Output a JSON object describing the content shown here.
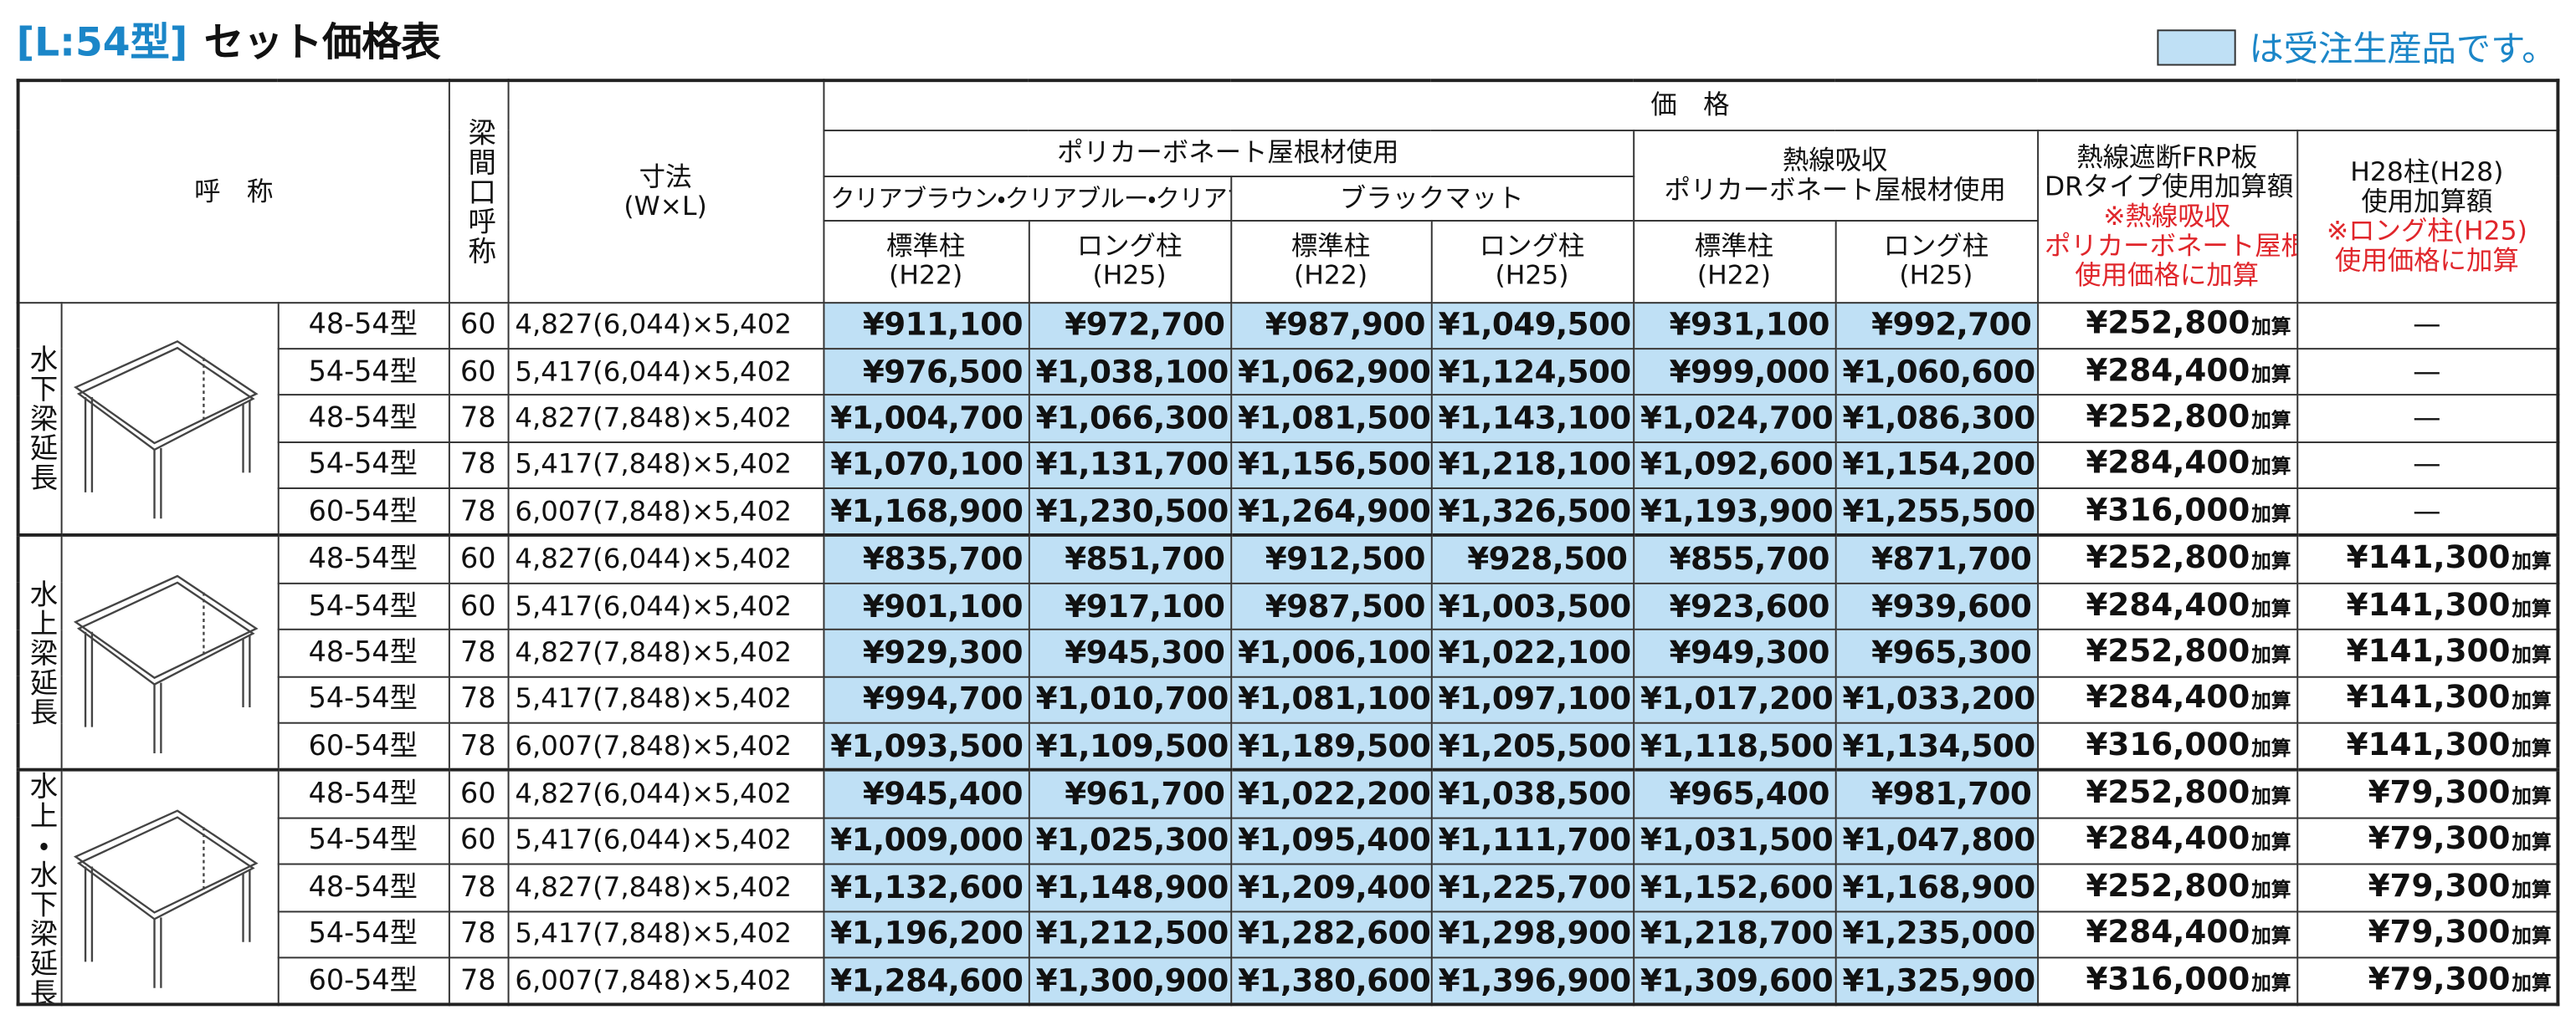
{
  "header": {
    "code": "[L:54型]",
    "title": "セット価格表",
    "legend": "は受注生産品です。",
    "name": "呼　称",
    "span": "梁間口呼称",
    "size": "寸法",
    "size_unit": "(W×L)",
    "price": "価　格",
    "poly": "ポリカーボネート屋根材使用",
    "clear": "クリアブラウン・クリアブルー・クリアマット",
    "black": "ブラックマット",
    "heat_absorb": [
      "熱線吸収",
      "ポリカーボネート屋根材使用"
    ],
    "dr": [
      "熱線遮断FRP板",
      "DRタイプ使用加算額"
    ],
    "dr_note": [
      "※熱線吸収",
      "ポリカーボネート屋根材",
      "使用価格に加算"
    ],
    "h28": [
      "H28柱(H28)",
      "使用加算額"
    ],
    "h28_note": [
      "※ロング柱(H25)",
      "使用価格に加算"
    ],
    "post_std": [
      "標準柱",
      "(H22)"
    ],
    "post_long": [
      "ロング柱",
      "(H25)"
    ],
    "add_suffix": "加算"
  },
  "groups": [
    {
      "label": "水下梁延長",
      "rows": [
        {
          "name": "48-54型",
          "span": "60",
          "size": "4,827(6,044)×5,402",
          "prices": [
            "¥911,100",
            "¥972,700",
            "¥987,900",
            "¥1,049,500",
            "¥931,100",
            "¥992,700"
          ],
          "dr": "¥252,800",
          "h28": "—"
        },
        {
          "name": "54-54型",
          "span": "60",
          "size": "5,417(6,044)×5,402",
          "prices": [
            "¥976,500",
            "¥1,038,100",
            "¥1,062,900",
            "¥1,124,500",
            "¥999,000",
            "¥1,060,600"
          ],
          "dr": "¥284,400",
          "h28": "—"
        },
        {
          "name": "48-54型",
          "span": "78",
          "size": "4,827(7,848)×5,402",
          "prices": [
            "¥1,004,700",
            "¥1,066,300",
            "¥1,081,500",
            "¥1,143,100",
            "¥1,024,700",
            "¥1,086,300"
          ],
          "dr": "¥252,800",
          "h28": "—"
        },
        {
          "name": "54-54型",
          "span": "78",
          "size": "5,417(7,848)×5,402",
          "prices": [
            "¥1,070,100",
            "¥1,131,700",
            "¥1,156,500",
            "¥1,218,100",
            "¥1,092,600",
            "¥1,154,200"
          ],
          "dr": "¥284,400",
          "h28": "—"
        },
        {
          "name": "60-54型",
          "span": "78",
          "size": "6,007(7,848)×5,402",
          "prices": [
            "¥1,168,900",
            "¥1,230,500",
            "¥1,264,900",
            "¥1,326,500",
            "¥1,193,900",
            "¥1,255,500"
          ],
          "dr": "¥316,000",
          "h28": "—"
        }
      ]
    },
    {
      "label": "水上梁延長",
      "rows": [
        {
          "name": "48-54型",
          "span": "60",
          "size": "4,827(6,044)×5,402",
          "prices": [
            "¥835,700",
            "¥851,700",
            "¥912,500",
            "¥928,500",
            "¥855,700",
            "¥871,700"
          ],
          "dr": "¥252,800",
          "h28": "¥141,300"
        },
        {
          "name": "54-54型",
          "span": "60",
          "size": "5,417(6,044)×5,402",
          "prices": [
            "¥901,100",
            "¥917,100",
            "¥987,500",
            "¥1,003,500",
            "¥923,600",
            "¥939,600"
          ],
          "dr": "¥284,400",
          "h28": "¥141,300"
        },
        {
          "name": "48-54型",
          "span": "78",
          "size": "4,827(7,848)×5,402",
          "prices": [
            "¥929,300",
            "¥945,300",
            "¥1,006,100",
            "¥1,022,100",
            "¥949,300",
            "¥965,300"
          ],
          "dr": "¥252,800",
          "h28": "¥141,300"
        },
        {
          "name": "54-54型",
          "span": "78",
          "size": "5,417(7,848)×5,402",
          "prices": [
            "¥994,700",
            "¥1,010,700",
            "¥1,081,100",
            "¥1,097,100",
            "¥1,017,200",
            "¥1,033,200"
          ],
          "dr": "¥284,400",
          "h28": "¥141,300"
        },
        {
          "name": "60-54型",
          "span": "78",
          "size": "6,007(7,848)×5,402",
          "prices": [
            "¥1,093,500",
            "¥1,109,500",
            "¥1,189,500",
            "¥1,205,500",
            "¥1,118,500",
            "¥1,134,500"
          ],
          "dr": "¥316,000",
          "h28": "¥141,300"
        }
      ]
    },
    {
      "label": "水上・水下梁延長",
      "rows": [
        {
          "name": "48-54型",
          "span": "60",
          "size": "4,827(6,044)×5,402",
          "prices": [
            "¥945,400",
            "¥961,700",
            "¥1,022,200",
            "¥1,038,500",
            "¥965,400",
            "¥981,700"
          ],
          "dr": "¥252,800",
          "h28": "¥79,300"
        },
        {
          "name": "54-54型",
          "span": "60",
          "size": "5,417(6,044)×5,402",
          "prices": [
            "¥1,009,000",
            "¥1,025,300",
            "¥1,095,400",
            "¥1,111,700",
            "¥1,031,500",
            "¥1,047,800"
          ],
          "dr": "¥284,400",
          "h28": "¥79,300"
        },
        {
          "name": "48-54型",
          "span": "78",
          "size": "4,827(7,848)×5,402",
          "prices": [
            "¥1,132,600",
            "¥1,148,900",
            "¥1,209,400",
            "¥1,225,700",
            "¥1,152,600",
            "¥1,168,900"
          ],
          "dr": "¥252,800",
          "h28": "¥79,300"
        },
        {
          "name": "54-54型",
          "span": "78",
          "size": "5,417(7,848)×5,402",
          "prices": [
            "¥1,196,200",
            "¥1,212,500",
            "¥1,282,600",
            "¥1,298,900",
            "¥1,218,700",
            "¥1,235,000"
          ],
          "dr": "¥284,400",
          "h28": "¥79,300"
        },
        {
          "name": "60-54型",
          "span": "78",
          "size": "6,007(7,848)×5,402",
          "prices": [
            "¥1,284,600",
            "¥1,300,900",
            "¥1,380,600",
            "¥1,396,900",
            "¥1,309,600",
            "¥1,325,900"
          ],
          "dr": "¥316,000",
          "h28": "¥79,300"
        }
      ]
    }
  ]
}
